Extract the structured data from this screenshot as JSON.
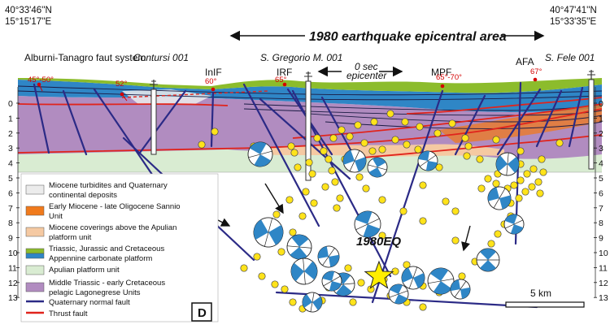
{
  "corners": {
    "left_lat": "40°33'46''N",
    "left_lon": "15°15'17''E",
    "right_lat": "40°47'41''N",
    "right_lon": "15°33'35''E"
  },
  "banner": "1980 earthquake epicentral area",
  "wells": [
    "Contursi 001",
    "S. Gregorio M. 001",
    "S. Fele 001"
  ],
  "epicenter_note": [
    "0 sec",
    "epicenter"
  ],
  "fault_labels": {
    "system": "Alburni-Tanagro faut system",
    "inif": "InIF",
    "irf": "IRF",
    "mpf": "MPF",
    "afa": "AFA"
  },
  "dips": [
    "45°-50°",
    "52°",
    "60°",
    "65°",
    "65°-70°",
    "67°"
  ],
  "depth_ticks": [
    "0",
    "1",
    "2",
    "3",
    "4",
    "5",
    "6",
    "7",
    "8",
    "9",
    "10",
    "11",
    "12",
    "13"
  ],
  "eq_label": "1980EQ",
  "scale_label": "5 km",
  "panel_label": "D",
  "legend": [
    {
      "lines": [
        "Miocene turbidites and Quaternary",
        "continental deposits"
      ],
      "swatch": "#ececec"
    },
    {
      "lines": [
        "Early Miocene - late Oligocene Sannio",
        "Unit"
      ],
      "swatch": "#f07a1c"
    },
    {
      "lines": [
        "Miocene coverings above the Apulian",
        "platform unit"
      ],
      "swatch": "#f5c9a2"
    },
    {
      "lines": [
        "Triassic, Jurassic and Cretaceous",
        "Appennine carbonate platform"
      ],
      "swatch": "dual"
    },
    {
      "lines": [
        "Apulian platform unit"
      ],
      "swatch": "#d9ecd2"
    },
    {
      "lines": [
        "Middle Triassic - early Cretaceous",
        "pelagic Lagonegrese Units"
      ],
      "swatch": "#b18cc0"
    },
    {
      "lines": [
        "Quaternary normal fault"
      ],
      "swatch": "line-blue"
    },
    {
      "lines": [
        "Thrust fault"
      ],
      "swatch": "line-red"
    }
  ],
  "colors": {
    "lagonegrese": "#b18cc0",
    "carbonate_blue": "#2f86c6",
    "carbonate_green": "#8cbc2c",
    "apulian": "#d9ecd2",
    "sannio": "#f07a1c",
    "thrust": "#e0241c",
    "normal_fault": "#2b2a86",
    "event": "#ffe31a",
    "mainshock": "#ffee00"
  }
}
